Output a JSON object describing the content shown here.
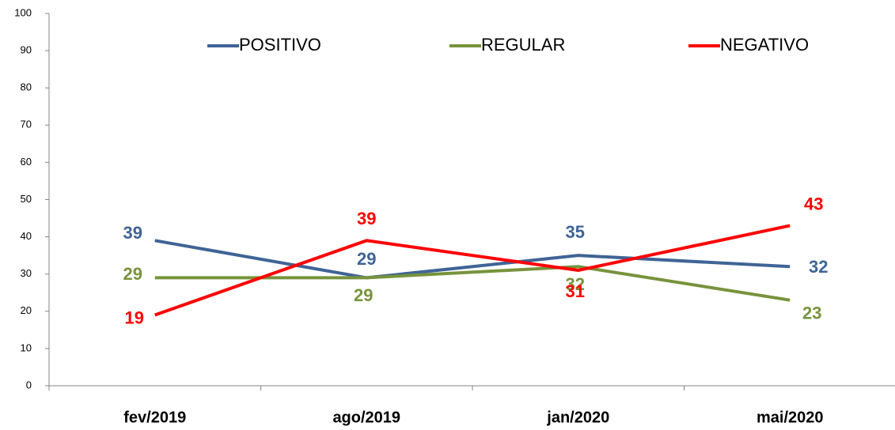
{
  "chart_data": {
    "type": "line",
    "categories": [
      "fev/2019",
      "ago/2019",
      "jan/2020",
      "mai/2020"
    ],
    "series": [
      {
        "name": "POSITIVO",
        "color": "#3f6496",
        "values": [
          39,
          29,
          35,
          32
        ]
      },
      {
        "name": "REGULAR",
        "color": "#77933c",
        "values": [
          29,
          29,
          32,
          23
        ]
      },
      {
        "name": "NEGATIVO",
        "color": "#ff0000",
        "values": [
          19,
          39,
          31,
          43
        ]
      }
    ],
    "ylim": [
      0,
      100
    ],
    "yticks": [
      0,
      10,
      20,
      30,
      40,
      50,
      60,
      70,
      80,
      90,
      100
    ],
    "legend": "top"
  }
}
